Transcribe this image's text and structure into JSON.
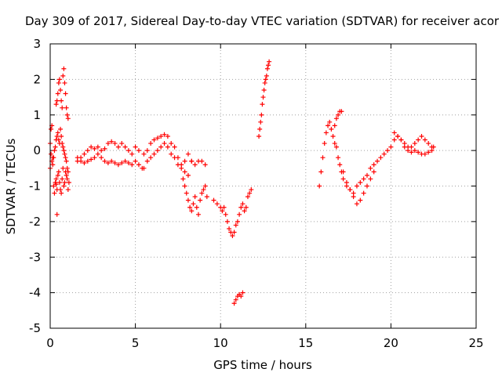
{
  "chart_data": {
    "type": "scatter",
    "title": "Day 309 of 2017, Sidereal Day-to-day VTEC variation (SDTVAR) for receiver acor",
    "xlabel": "GPS time / hours",
    "ylabel": "SDTVAR / TECUs",
    "xlim": [
      0,
      25
    ],
    "ylim": [
      -5,
      3
    ],
    "xticks": [
      "0",
      "5",
      "10",
      "15",
      "20",
      "25"
    ],
    "yticks": [
      "-5",
      "-4",
      "-3",
      "-2",
      "-1",
      "0",
      "1",
      "2",
      "3"
    ],
    "grid": true,
    "marker": "+",
    "color": "#ff0000",
    "series": [
      {
        "name": "acor",
        "x": [
          0.0,
          0.05,
          0.1,
          0.15,
          0.2,
          0.25,
          0.3,
          0.35,
          0.4,
          0.45,
          0.5,
          0.55,
          0.6,
          0.65,
          0.7,
          0.75,
          0.8,
          0.85,
          0.9,
          0.95,
          1.0,
          1.05,
          1.1,
          0.35,
          0.4,
          0.45,
          0.5,
          0.55,
          0.6,
          0.65,
          0.7,
          0.75,
          0.8,
          0.85,
          0.9,
          0.95,
          1.0,
          1.05,
          0.4,
          0.0,
          0.05,
          0.1,
          0.15,
          0.2,
          0.25,
          0.3,
          0.35,
          0.4,
          0.45,
          0.5,
          0.55,
          0.6,
          0.65,
          0.7,
          0.75,
          0.8,
          0.85,
          0.9,
          0.95,
          1.0,
          1.05,
          1.6,
          1.8,
          2.0,
          2.2,
          2.4,
          2.6,
          2.8,
          3.0,
          3.2,
          3.4,
          3.6,
          3.8,
          4.0,
          4.2,
          4.4,
          4.6,
          4.8,
          5.0,
          5.2,
          1.6,
          1.8,
          2.0,
          2.2,
          2.4,
          2.6,
          2.8,
          3.0,
          3.2,
          3.4,
          3.6,
          3.8,
          4.0,
          4.2,
          4.4,
          4.6,
          4.8,
          5.0,
          5.2,
          5.4,
          5.5,
          5.7,
          5.9,
          6.1,
          6.3,
          6.5,
          6.7,
          6.9,
          7.1,
          7.3,
          7.5,
          7.7,
          7.9,
          8.1,
          8.3,
          8.5,
          8.7,
          8.9,
          9.1,
          5.5,
          5.7,
          5.9,
          6.1,
          6.3,
          6.5,
          6.7,
          6.9,
          7.1,
          7.3,
          7.5,
          7.7,
          7.9,
          8.1,
          8.3,
          7.8,
          7.9,
          8.0,
          8.1,
          8.2,
          8.3,
          8.4,
          8.5,
          8.6,
          8.7,
          8.8,
          8.9,
          9.0,
          9.1,
          9.2,
          9.6,
          9.8,
          10.0,
          10.1,
          10.2,
          10.3,
          10.4,
          10.5,
          10.6,
          10.7,
          10.8,
          10.9,
          11.0,
          11.1,
          11.2,
          11.3,
          11.4,
          11.5,
          11.6,
          11.7,
          11.8,
          10.8,
          10.9,
          11.0,
          11.1,
          11.2,
          11.3,
          12.25,
          12.3,
          12.35,
          12.4,
          12.45,
          12.5,
          12.55,
          12.6,
          12.65,
          12.7,
          12.75,
          12.8,
          12.85,
          15.8,
          15.9,
          16.0,
          16.1,
          16.2,
          16.3,
          16.4,
          16.5,
          16.6,
          16.7,
          16.8,
          16.9,
          17.0,
          17.1,
          16.7,
          16.8,
          16.9,
          17.0,
          17.1,
          17.2,
          17.4,
          17.6,
          17.8,
          18.0,
          18.2,
          18.4,
          18.6,
          18.8,
          19.0,
          19.2,
          17.2,
          17.4,
          17.6,
          17.8,
          18.0,
          18.2,
          18.4,
          18.6,
          18.8,
          19.0,
          19.4,
          19.6,
          19.8,
          20.0,
          20.2,
          20.4,
          20.6,
          20.8,
          21.0,
          21.2,
          21.4,
          21.6,
          21.8,
          22.0,
          22.2,
          22.4,
          22.5,
          20.2,
          20.4,
          20.6,
          20.8,
          21.0,
          21.2,
          21.4,
          21.6,
          21.8,
          22.0,
          22.2,
          22.4,
          0.35
        ],
        "y": [
          -0.5,
          0.6,
          0.7,
          -0.2,
          -1.0,
          -1.2,
          -0.9,
          -0.8,
          -1.1,
          -0.7,
          -0.6,
          -0.9,
          -1.1,
          -1.2,
          -0.8,
          -0.5,
          -1.0,
          -0.9,
          -0.6,
          -0.7,
          -0.8,
          -1.1,
          -0.9,
          1.3,
          1.4,
          1.6,
          1.9,
          2.0,
          1.7,
          1.4,
          1.2,
          2.1,
          2.3,
          1.9,
          1.6,
          1.2,
          1.0,
          0.9,
          -1.8,
          0.2,
          -0.1,
          -0.3,
          -0.4,
          -0.2,
          0.0,
          0.1,
          0.3,
          0.4,
          0.5,
          0.3,
          0.2,
          0.6,
          0.4,
          0.2,
          0.1,
          0.0,
          -0.1,
          -0.2,
          -0.3,
          -0.5,
          -0.6,
          -0.3,
          -0.2,
          -0.1,
          0.0,
          0.1,
          0.05,
          0.1,
          0.0,
          0.05,
          0.2,
          0.25,
          0.2,
          0.1,
          0.2,
          0.1,
          0.0,
          -0.1,
          0.1,
          0.0,
          -0.2,
          -0.3,
          -0.35,
          -0.3,
          -0.25,
          -0.2,
          -0.1,
          -0.2,
          -0.3,
          -0.35,
          -0.3,
          -0.35,
          -0.4,
          -0.35,
          -0.3,
          -0.35,
          -0.4,
          -0.3,
          -0.4,
          -0.5,
          -0.1,
          0.0,
          0.2,
          0.3,
          0.35,
          0.4,
          0.45,
          0.4,
          0.2,
          0.1,
          -0.2,
          -0.5,
          -0.3,
          -0.1,
          -0.3,
          -0.4,
          -0.3,
          -0.3,
          -0.4,
          -0.5,
          -0.3,
          -0.2,
          -0.1,
          0.0,
          0.1,
          0.2,
          0.1,
          -0.1,
          -0.2,
          -0.4,
          -0.4,
          -0.6,
          -0.7,
          -0.3,
          -0.8,
          -1.0,
          -1.2,
          -1.4,
          -1.6,
          -1.7,
          -1.5,
          -1.3,
          -1.6,
          -1.8,
          -1.4,
          -1.2,
          -1.1,
          -1.0,
          -1.3,
          -1.4,
          -1.5,
          -1.6,
          -1.7,
          -1.6,
          -1.8,
          -2.0,
          -2.2,
          -2.3,
          -2.4,
          -2.3,
          -2.1,
          -2.0,
          -1.8,
          -1.6,
          -1.5,
          -1.7,
          -1.6,
          -1.3,
          -1.2,
          -1.1,
          -4.3,
          -4.2,
          -4.1,
          -4.05,
          -4.1,
          -4.0,
          0.4,
          0.6,
          0.8,
          1.0,
          1.3,
          1.5,
          1.7,
          1.9,
          2.0,
          2.1,
          2.3,
          2.4,
          2.5,
          -1.0,
          -0.6,
          -0.2,
          0.2,
          0.5,
          0.7,
          0.8,
          0.6,
          0.4,
          0.7,
          0.9,
          1.0,
          1.1,
          1.1,
          0.2,
          0.1,
          -0.2,
          -0.4,
          -0.6,
          -0.8,
          -1.0,
          -1.1,
          -1.2,
          -1.0,
          -0.9,
          -0.8,
          -0.7,
          -0.5,
          -0.4,
          -0.3,
          -0.6,
          -0.9,
          -1.1,
          -1.3,
          -1.5,
          -1.4,
          -1.2,
          -1.0,
          -0.8,
          -0.6,
          -0.2,
          -0.1,
          0.0,
          0.1,
          0.3,
          0.4,
          0.3,
          0.2,
          0.1,
          0.1,
          0.2,
          0.3,
          0.4,
          0.3,
          0.2,
          0.1,
          0.1,
          0.5,
          0.4,
          0.3,
          0.1,
          0.0,
          -0.05,
          0.0,
          -0.05,
          -0.1,
          -0.1,
          -0.05,
          0.0,
          -0.95
        ]
      }
    ]
  }
}
